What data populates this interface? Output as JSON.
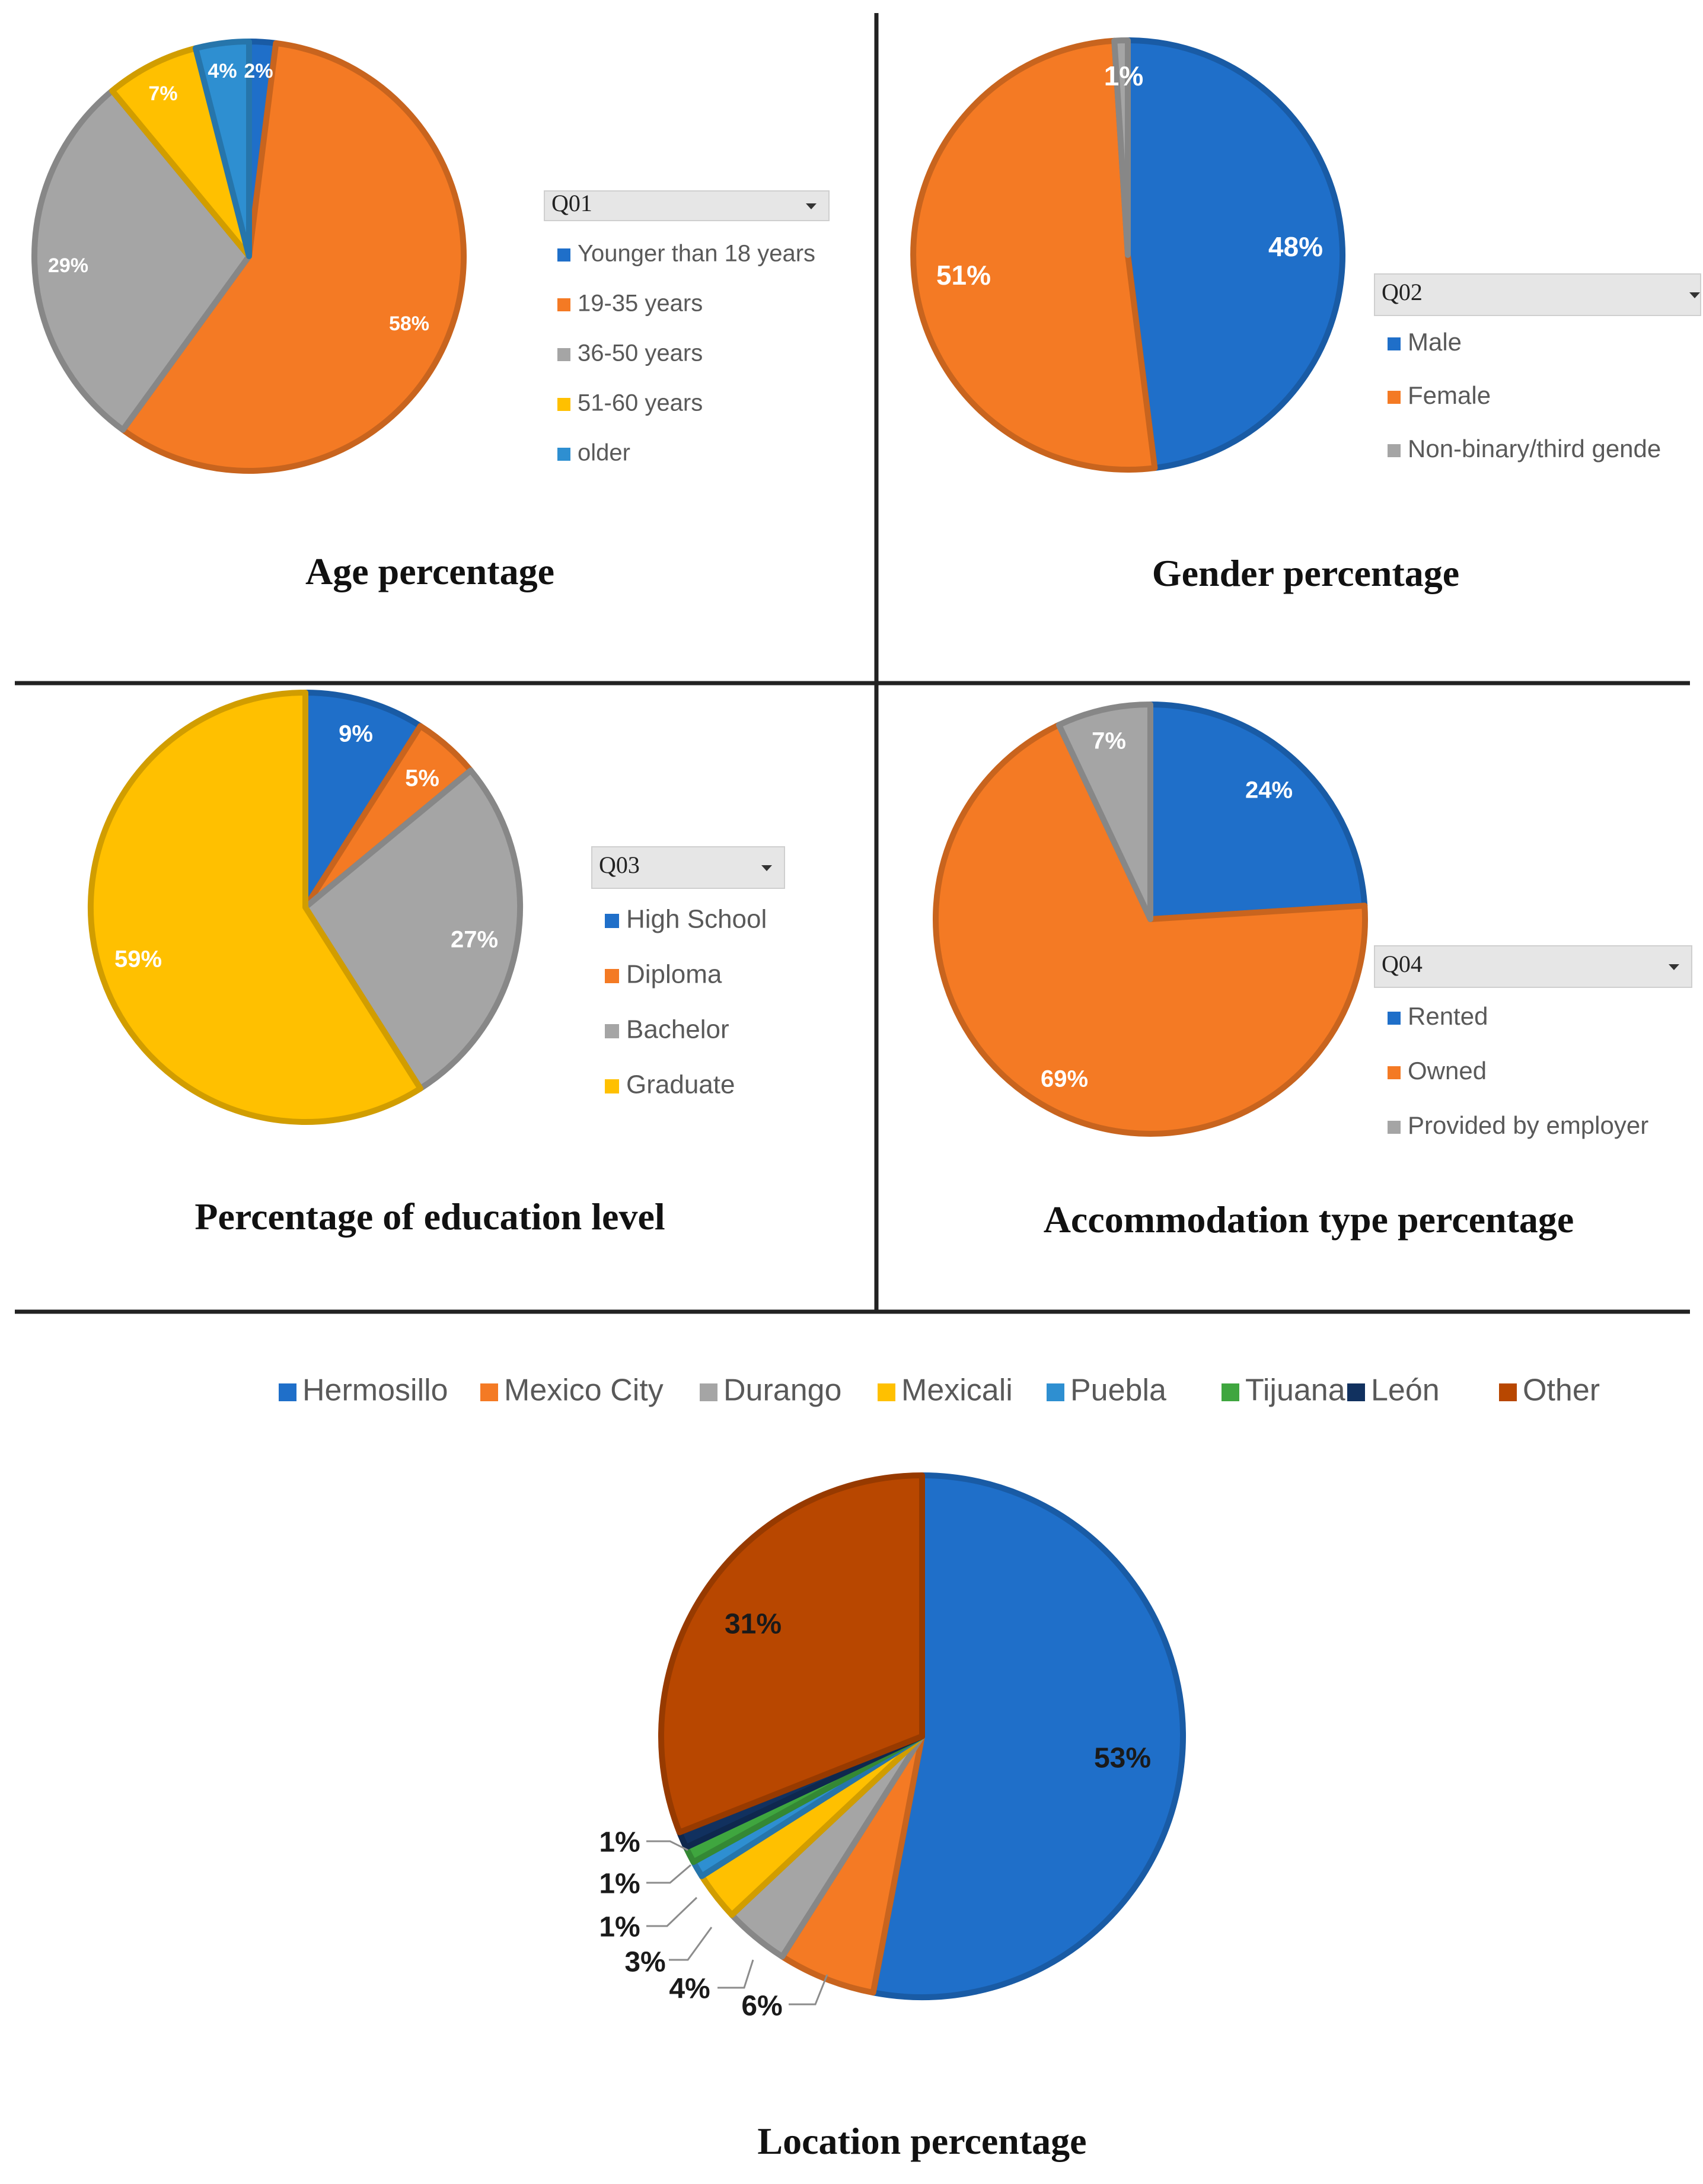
{
  "colors": {
    "blue": "#1f6fc9",
    "orange": "#f47a24",
    "gray": "#a5a5a5",
    "yellow": "#ffc000",
    "lightblue": "#2e8fd1",
    "green": "#3fa63f",
    "navy": "#11315f",
    "brown": "#b84700"
  },
  "chart_data": [
    {
      "type": "pie",
      "title": "Age percentage",
      "legend_title": "Q01",
      "categories": [
        "Younger than 18 years",
        "19-35 years",
        "36-50 years",
        "51-60 years",
        "older"
      ],
      "values": [
        2,
        58,
        29,
        7,
        4
      ],
      "labels": [
        "2%",
        "58%",
        "29%",
        "7%",
        "4%"
      ],
      "colors": [
        "#1f6fc9",
        "#f47a24",
        "#a5a5a5",
        "#ffc000",
        "#2e8fd1"
      ],
      "legend": "right"
    },
    {
      "type": "pie",
      "title": "Gender percentage",
      "legend_title": "Q02",
      "categories": [
        "Male",
        "Female",
        "Non-binary/third gende"
      ],
      "values": [
        48,
        51,
        1
      ],
      "labels": [
        "48%",
        "51%",
        "1%"
      ],
      "colors": [
        "#1f6fc9",
        "#f47a24",
        "#a5a5a5"
      ],
      "legend": "right"
    },
    {
      "type": "pie",
      "title": "Percentage of education level",
      "legend_title": "Q03",
      "categories": [
        "High School",
        "Diploma",
        "Bachelor",
        "Graduate"
      ],
      "values": [
        9,
        5,
        27,
        59
      ],
      "labels": [
        "9%",
        "5%",
        "27%",
        "59%"
      ],
      "colors": [
        "#1f6fc9",
        "#f47a24",
        "#a5a5a5",
        "#ffc000"
      ],
      "legend": "right"
    },
    {
      "type": "pie",
      "title": "Accommodation type percentage",
      "legend_title": "Q04",
      "categories": [
        "Rented",
        "Owned",
        "Provided by employer"
      ],
      "values": [
        24,
        69,
        7
      ],
      "labels": [
        "24%",
        "69%",
        "7%"
      ],
      "colors": [
        "#1f6fc9",
        "#f47a24",
        "#a5a5a5"
      ],
      "legend": "right"
    },
    {
      "type": "pie",
      "title": "Location percentage",
      "categories": [
        "Hermosillo",
        "Mexico City",
        "Durango",
        "Mexicali",
        "Puebla",
        "Tijuana",
        "León",
        "Other"
      ],
      "values": [
        53,
        6,
        4,
        3,
        1,
        1,
        1,
        31
      ],
      "labels": [
        "53%",
        "6%",
        "4%",
        "3%",
        "1%",
        "1%",
        "1%",
        "31%"
      ],
      "colors": [
        "#1f6fc9",
        "#f47a24",
        "#a5a5a5",
        "#ffc000",
        "#2e8fd1",
        "#3fa63f",
        "#11315f",
        "#b84700"
      ],
      "legend": "top"
    }
  ]
}
